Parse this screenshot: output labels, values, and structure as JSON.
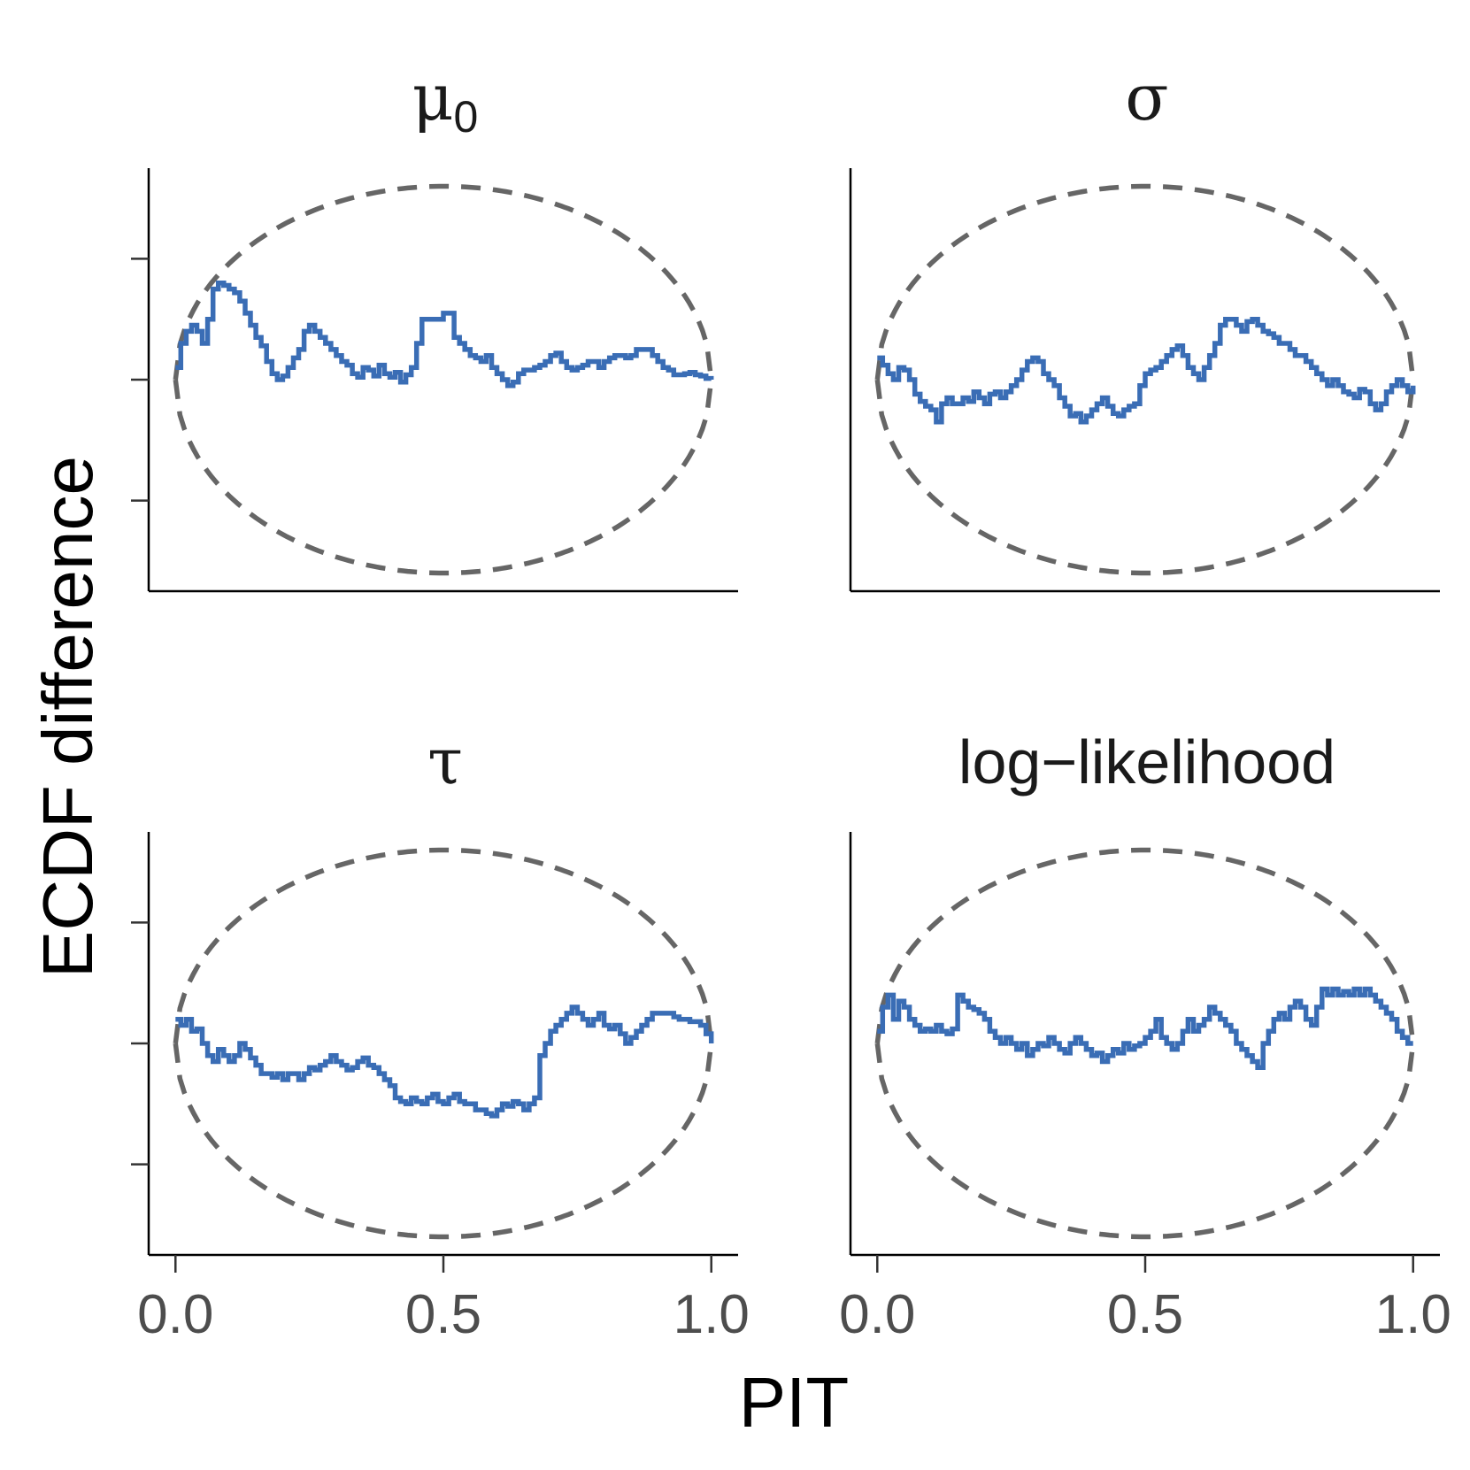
{
  "chart_data": {
    "type": "line",
    "xlabel": "PIT",
    "ylabel": "ECDF difference",
    "xlim": [
      -0.05,
      1.05
    ],
    "ylim": [
      -0.175,
      0.175
    ],
    "xticks": [
      "0.0",
      "0.5",
      "1.0"
    ],
    "yticks": [
      -0.1,
      0.0,
      0.1
    ],
    "y_tick_labels_shown": false,
    "grid": false,
    "legend": "none",
    "colors": {
      "ecdf": "#3a6db5",
      "band": "#666666"
    },
    "simultaneous_band_halfwidth_peak": 0.16,
    "panels": [
      {
        "title": "μ",
        "title_subscript": "0",
        "x": [
          0.0,
          0.01,
          0.02,
          0.03,
          0.04,
          0.05,
          0.06,
          0.07,
          0.08,
          0.09,
          0.1,
          0.11,
          0.12,
          0.13,
          0.14,
          0.15,
          0.16,
          0.17,
          0.18,
          0.19,
          0.2,
          0.21,
          0.22,
          0.23,
          0.24,
          0.25,
          0.26,
          0.27,
          0.28,
          0.29,
          0.3,
          0.31,
          0.32,
          0.33,
          0.34,
          0.35,
          0.36,
          0.37,
          0.38,
          0.39,
          0.4,
          0.41,
          0.42,
          0.43,
          0.44,
          0.45,
          0.46,
          0.47,
          0.48,
          0.49,
          0.5,
          0.51,
          0.52,
          0.53,
          0.54,
          0.55,
          0.56,
          0.57,
          0.58,
          0.59,
          0.6,
          0.61,
          0.62,
          0.63,
          0.64,
          0.65,
          0.66,
          0.67,
          0.68,
          0.69,
          0.7,
          0.71,
          0.72,
          0.73,
          0.74,
          0.75,
          0.76,
          0.77,
          0.78,
          0.79,
          0.8,
          0.81,
          0.82,
          0.83,
          0.84,
          0.85,
          0.86,
          0.87,
          0.88,
          0.89,
          0.9,
          0.91,
          0.92,
          0.93,
          0.94,
          0.95,
          0.96,
          0.97,
          0.98,
          0.99,
          1.0
        ],
        "y": [
          0.01,
          0.03,
          0.04,
          0.045,
          0.04,
          0.03,
          0.05,
          0.075,
          0.08,
          0.078,
          0.075,
          0.072,
          0.065,
          0.055,
          0.045,
          0.035,
          0.028,
          0.015,
          0.005,
          0.0,
          0.003,
          0.01,
          0.018,
          0.025,
          0.04,
          0.045,
          0.04,
          0.035,
          0.03,
          0.025,
          0.02,
          0.015,
          0.012,
          0.005,
          0.002,
          0.01,
          0.008,
          0.003,
          0.012,
          0.005,
          0.002,
          0.006,
          -0.002,
          0.004,
          0.01,
          0.03,
          0.05,
          0.05,
          0.05,
          0.05,
          0.055,
          0.055,
          0.035,
          0.03,
          0.025,
          0.02,
          0.018,
          0.015,
          0.02,
          0.01,
          0.005,
          0.0,
          -0.005,
          -0.002,
          0.005,
          0.008,
          0.008,
          0.01,
          0.012,
          0.015,
          0.02,
          0.022,
          0.015,
          0.01,
          0.008,
          0.01,
          0.012,
          0.015,
          0.015,
          0.01,
          0.015,
          0.018,
          0.02,
          0.02,
          0.018,
          0.02,
          0.025,
          0.025,
          0.025,
          0.02,
          0.015,
          0.01,
          0.008,
          0.004,
          0.004,
          0.005,
          0.006,
          0.004,
          0.003,
          0.001,
          0.0
        ]
      },
      {
        "title": "σ",
        "title_subscript": "",
        "x": [
          0.0,
          0.01,
          0.02,
          0.03,
          0.04,
          0.05,
          0.06,
          0.07,
          0.08,
          0.09,
          0.1,
          0.11,
          0.12,
          0.13,
          0.14,
          0.15,
          0.16,
          0.17,
          0.18,
          0.19,
          0.2,
          0.21,
          0.22,
          0.23,
          0.24,
          0.25,
          0.26,
          0.27,
          0.28,
          0.29,
          0.3,
          0.31,
          0.32,
          0.33,
          0.34,
          0.35,
          0.36,
          0.37,
          0.38,
          0.39,
          0.4,
          0.41,
          0.42,
          0.43,
          0.44,
          0.45,
          0.46,
          0.47,
          0.48,
          0.49,
          0.5,
          0.51,
          0.52,
          0.53,
          0.54,
          0.55,
          0.56,
          0.57,
          0.58,
          0.59,
          0.6,
          0.61,
          0.62,
          0.63,
          0.64,
          0.65,
          0.66,
          0.67,
          0.68,
          0.69,
          0.7,
          0.71,
          0.72,
          0.73,
          0.74,
          0.75,
          0.76,
          0.77,
          0.78,
          0.79,
          0.8,
          0.81,
          0.82,
          0.83,
          0.84,
          0.85,
          0.86,
          0.87,
          0.88,
          0.89,
          0.9,
          0.91,
          0.92,
          0.93,
          0.94,
          0.95,
          0.96,
          0.97,
          0.98,
          0.99,
          1.0
        ],
        "y": [
          0.018,
          0.012,
          0.005,
          0.0,
          0.01,
          0.008,
          0.0,
          -0.012,
          -0.018,
          -0.022,
          -0.025,
          -0.035,
          -0.02,
          -0.015,
          -0.02,
          -0.02,
          -0.015,
          -0.018,
          -0.01,
          -0.015,
          -0.02,
          -0.012,
          -0.01,
          -0.015,
          -0.01,
          -0.005,
          0.0,
          0.008,
          0.015,
          0.018,
          0.015,
          0.005,
          0.0,
          -0.005,
          -0.015,
          -0.022,
          -0.03,
          -0.028,
          -0.035,
          -0.03,
          -0.025,
          -0.02,
          -0.015,
          -0.022,
          -0.028,
          -0.03,
          -0.025,
          -0.022,
          -0.02,
          -0.005,
          0.005,
          0.008,
          0.01,
          0.015,
          0.02,
          0.025,
          0.028,
          0.02,
          0.01,
          0.005,
          0.0,
          0.01,
          0.02,
          0.03,
          0.045,
          0.05,
          0.05,
          0.045,
          0.04,
          0.048,
          0.05,
          0.045,
          0.04,
          0.038,
          0.035,
          0.03,
          0.03,
          0.025,
          0.02,
          0.02,
          0.015,
          0.01,
          0.005,
          0.0,
          -0.005,
          0.0,
          -0.005,
          -0.01,
          -0.012,
          -0.015,
          -0.008,
          -0.01,
          -0.02,
          -0.025,
          -0.02,
          -0.01,
          -0.005,
          0.0,
          -0.005,
          -0.01,
          -0.005
        ]
      },
      {
        "title": "τ",
        "title_subscript": "",
        "x": [
          0.0,
          0.01,
          0.02,
          0.03,
          0.04,
          0.05,
          0.06,
          0.07,
          0.08,
          0.09,
          0.1,
          0.11,
          0.12,
          0.13,
          0.14,
          0.15,
          0.16,
          0.17,
          0.18,
          0.19,
          0.2,
          0.21,
          0.22,
          0.23,
          0.24,
          0.25,
          0.26,
          0.27,
          0.28,
          0.29,
          0.3,
          0.31,
          0.32,
          0.33,
          0.34,
          0.35,
          0.36,
          0.37,
          0.38,
          0.39,
          0.4,
          0.41,
          0.42,
          0.43,
          0.44,
          0.45,
          0.46,
          0.47,
          0.48,
          0.49,
          0.5,
          0.51,
          0.52,
          0.53,
          0.54,
          0.55,
          0.56,
          0.57,
          0.58,
          0.59,
          0.6,
          0.61,
          0.62,
          0.63,
          0.64,
          0.65,
          0.66,
          0.67,
          0.68,
          0.69,
          0.7,
          0.71,
          0.72,
          0.73,
          0.74,
          0.75,
          0.76,
          0.77,
          0.78,
          0.79,
          0.8,
          0.81,
          0.82,
          0.83,
          0.84,
          0.85,
          0.86,
          0.87,
          0.88,
          0.89,
          0.9,
          0.91,
          0.92,
          0.93,
          0.94,
          0.95,
          0.96,
          0.97,
          0.98,
          0.99,
          1.0
        ],
        "y": [
          0.02,
          0.015,
          0.02,
          0.01,
          0.012,
          0.0,
          -0.01,
          -0.015,
          -0.005,
          -0.01,
          -0.015,
          -0.01,
          0.0,
          -0.005,
          -0.012,
          -0.018,
          -0.025,
          -0.025,
          -0.028,
          -0.025,
          -0.03,
          -0.025,
          -0.025,
          -0.03,
          -0.025,
          -0.02,
          -0.022,
          -0.018,
          -0.015,
          -0.01,
          -0.015,
          -0.018,
          -0.022,
          -0.02,
          -0.015,
          -0.012,
          -0.018,
          -0.02,
          -0.025,
          -0.03,
          -0.035,
          -0.045,
          -0.048,
          -0.05,
          -0.045,
          -0.048,
          -0.05,
          -0.045,
          -0.042,
          -0.048,
          -0.05,
          -0.045,
          -0.042,
          -0.048,
          -0.05,
          -0.05,
          -0.055,
          -0.055,
          -0.058,
          -0.06,
          -0.055,
          -0.05,
          -0.052,
          -0.048,
          -0.05,
          -0.055,
          -0.05,
          -0.045,
          -0.01,
          0.0,
          0.01,
          0.015,
          0.02,
          0.025,
          0.03,
          0.025,
          0.02,
          0.015,
          0.02,
          0.025,
          0.015,
          0.012,
          0.015,
          0.008,
          0.0,
          0.005,
          0.01,
          0.015,
          0.02,
          0.025,
          0.025,
          0.025,
          0.025,
          0.022,
          0.02,
          0.02,
          0.018,
          0.018,
          0.015,
          0.008,
          0.0
        ]
      },
      {
        "title": "log−likelihood",
        "title_subscript": "",
        "x": [
          0.0,
          0.01,
          0.02,
          0.03,
          0.04,
          0.05,
          0.06,
          0.07,
          0.08,
          0.09,
          0.1,
          0.11,
          0.12,
          0.13,
          0.14,
          0.15,
          0.16,
          0.17,
          0.18,
          0.19,
          0.2,
          0.21,
          0.22,
          0.23,
          0.24,
          0.25,
          0.26,
          0.27,
          0.28,
          0.29,
          0.3,
          0.31,
          0.32,
          0.33,
          0.34,
          0.35,
          0.36,
          0.37,
          0.38,
          0.39,
          0.4,
          0.41,
          0.42,
          0.43,
          0.44,
          0.45,
          0.46,
          0.47,
          0.48,
          0.49,
          0.5,
          0.51,
          0.52,
          0.53,
          0.54,
          0.55,
          0.56,
          0.57,
          0.58,
          0.59,
          0.6,
          0.61,
          0.62,
          0.63,
          0.64,
          0.65,
          0.66,
          0.67,
          0.68,
          0.69,
          0.7,
          0.71,
          0.72,
          0.73,
          0.74,
          0.75,
          0.76,
          0.77,
          0.78,
          0.79,
          0.8,
          0.81,
          0.82,
          0.83,
          0.84,
          0.85,
          0.86,
          0.87,
          0.88,
          0.89,
          0.9,
          0.91,
          0.92,
          0.93,
          0.94,
          0.95,
          0.96,
          0.97,
          0.98,
          0.99,
          1.0
        ],
        "y": [
          0.01,
          0.03,
          0.04,
          0.02,
          0.035,
          0.03,
          0.02,
          0.015,
          0.01,
          0.012,
          0.01,
          0.015,
          0.01,
          0.008,
          0.012,
          0.04,
          0.035,
          0.03,
          0.028,
          0.025,
          0.02,
          0.01,
          0.005,
          0.0,
          0.005,
          0.0,
          -0.005,
          0.0,
          -0.01,
          -0.005,
          0.0,
          -0.002,
          0.005,
          0.0,
          -0.005,
          -0.008,
          0.0,
          0.005,
          0.0,
          -0.005,
          -0.01,
          -0.008,
          -0.015,
          -0.01,
          -0.005,
          -0.008,
          0.0,
          -0.005,
          -0.002,
          0.0,
          0.005,
          0.01,
          0.02,
          0.005,
          0.0,
          -0.005,
          0.0,
          0.01,
          0.02,
          0.01,
          0.015,
          0.02,
          0.03,
          0.025,
          0.02,
          0.015,
          0.01,
          0.0,
          -0.005,
          -0.01,
          -0.015,
          -0.02,
          0.0,
          0.01,
          0.02,
          0.025,
          0.02,
          0.03,
          0.035,
          0.03,
          0.02,
          0.015,
          0.03,
          0.045,
          0.04,
          0.045,
          0.04,
          0.043,
          0.04,
          0.045,
          0.04,
          0.045,
          0.04,
          0.035,
          0.03,
          0.025,
          0.02,
          0.01,
          0.005,
          0.0,
          0.0
        ]
      }
    ]
  }
}
